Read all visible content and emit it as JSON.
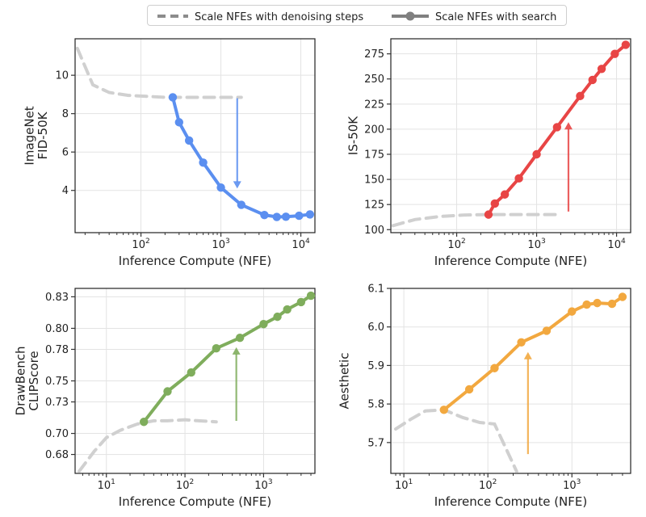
{
  "legend": {
    "items": [
      {
        "label": "Scale NFEs with denoising steps",
        "color": "#8c8c8c",
        "style": "dashed"
      },
      {
        "label": "Scale NFEs with search",
        "color": "#808080",
        "style": "solid-marker"
      }
    ]
  },
  "colors": {
    "baseline": "#d0d0d0",
    "grid": "#e3e3e3",
    "axis": "#222222"
  },
  "chart_data": [
    {
      "type": "line",
      "xscale": "log",
      "ylabel": "ImageNet\nFID-50K",
      "xlabel": "Inference Compute (NFE)",
      "xlim": [
        15,
        15000
      ],
      "ylim": [
        1.8,
        11.9
      ],
      "xticks": [
        100,
        1000,
        10000
      ],
      "xtick_labels": [
        "10^2",
        "10^3",
        "10^4"
      ],
      "yticks": [
        4,
        6,
        8,
        10
      ],
      "ytick_labels": [
        "4",
        "6",
        "8",
        "10"
      ],
      "color": "#5b8ff0",
      "arrow": {
        "x": 1600,
        "from": 8.8,
        "to": 4.1
      },
      "series": [
        {
          "name": "Scale NFEs with denoising steps",
          "style": "dashed",
          "x": [
            16,
            25,
            40,
            70,
            120,
            200,
            400,
            800,
            1800
          ],
          "y": [
            11.4,
            9.5,
            9.1,
            8.95,
            8.9,
            8.85,
            8.85,
            8.85,
            8.85
          ]
        },
        {
          "name": "Scale NFEs with search",
          "style": "solid",
          "x": [
            250,
            300,
            400,
            600,
            1000,
            1800,
            3500,
            5000,
            6500,
            9500,
            13000
          ],
          "y": [
            8.85,
            7.55,
            6.6,
            5.45,
            4.15,
            3.25,
            2.72,
            2.62,
            2.63,
            2.68,
            2.75
          ]
        }
      ]
    },
    {
      "type": "line",
      "xscale": "log",
      "ylabel": "IS-50K",
      "xlabel": "Inference Compute (NFE)",
      "xlim": [
        15,
        15000
      ],
      "ylim": [
        97,
        290
      ],
      "xticks": [
        100,
        1000,
        10000
      ],
      "xtick_labels": [
        "10^2",
        "10^3",
        "10^4"
      ],
      "yticks": [
        100,
        125,
        150,
        175,
        200,
        225,
        250,
        275
      ],
      "ytick_labels": [
        "100",
        "125",
        "150",
        "175",
        "200",
        "225",
        "250",
        "275"
      ],
      "color": "#e84545",
      "arrow": {
        "x": 2500,
        "from": 118,
        "to": 207
      },
      "series": [
        {
          "name": "Scale NFEs with denoising steps",
          "style": "dashed",
          "x": [
            16,
            30,
            60,
            120,
            250,
            500,
            1000,
            1800
          ],
          "y": [
            104,
            110,
            113,
            114.5,
            115,
            115,
            115,
            115
          ]
        },
        {
          "name": "Scale NFEs with search",
          "style": "solid",
          "x": [
            250,
            300,
            400,
            600,
            1000,
            1800,
            3500,
            5000,
            6500,
            9500,
            13000
          ],
          "y": [
            115,
            126,
            135,
            151,
            175,
            202,
            233,
            249,
            260,
            275,
            284
          ]
        }
      ]
    },
    {
      "type": "line",
      "xscale": "log",
      "ylabel": "DrawBench\nCLIPScore",
      "xlabel": "Inference Compute (NFE)",
      "xlim": [
        4,
        4500
      ],
      "ylim": [
        0.662,
        0.838
      ],
      "xticks": [
        10,
        100,
        1000
      ],
      "xtick_labels": [
        "10^1",
        "10^2",
        "10^3"
      ],
      "yticks": [
        0.68,
        0.7,
        0.73,
        0.75,
        0.78,
        0.8,
        0.83
      ],
      "ytick_labels": [
        "0.68",
        "0.70",
        "0.73",
        "0.75",
        "0.78",
        "0.80",
        "0.83"
      ],
      "color": "#7fad5c",
      "arrow": {
        "x": 450,
        "from": 0.712,
        "to": 0.782
      },
      "series": [
        {
          "name": "Scale NFEs with denoising steps",
          "style": "dashed",
          "x": [
            4.5,
            7,
            10,
            15,
            25,
            40,
            60,
            100,
            150,
            250
          ],
          "y": [
            0.664,
            0.683,
            0.696,
            0.703,
            0.709,
            0.712,
            0.712,
            0.713,
            0.712,
            0.711
          ]
        },
        {
          "name": "Scale NFEs with search",
          "style": "solid",
          "x": [
            30,
            60,
            120,
            250,
            500,
            1000,
            1500,
            2000,
            3000,
            4000
          ],
          "y": [
            0.711,
            0.74,
            0.758,
            0.781,
            0.791,
            0.804,
            0.811,
            0.818,
            0.825,
            0.831
          ]
        }
      ]
    },
    {
      "type": "line",
      "xscale": "log",
      "ylabel": "Aesthetic",
      "xlabel": "Inference Compute (NFE)",
      "xlim": [
        7,
        5000
      ],
      "ylim": [
        5.62,
        6.1
      ],
      "xticks": [
        10,
        100,
        1000
      ],
      "xtick_labels": [
        "10^1",
        "10^2",
        "10^3"
      ],
      "yticks": [
        5.7,
        5.8,
        5.9,
        6.0,
        6.1
      ],
      "ytick_labels": [
        "5.7",
        "5.8",
        "5.9",
        "6.0",
        "6.1"
      ],
      "color": "#f2a83f",
      "arrow": {
        "x": 300,
        "from": 5.67,
        "to": 5.935
      },
      "series": [
        {
          "name": "Scale NFEs with denoising steps",
          "style": "dashed",
          "x": [
            8,
            12,
            18,
            30,
            50,
            80,
            120,
            160,
            220
          ],
          "y": [
            5.735,
            5.76,
            5.782,
            5.785,
            5.765,
            5.752,
            5.748,
            5.69,
            5.625
          ]
        },
        {
          "name": "Scale NFEs with search",
          "style": "solid",
          "x": [
            30,
            60,
            120,
            250,
            500,
            1000,
            1500,
            2000,
            3000,
            4000
          ],
          "y": [
            5.785,
            5.838,
            5.893,
            5.96,
            5.99,
            6.04,
            6.058,
            6.062,
            6.06,
            6.078
          ]
        }
      ]
    }
  ]
}
